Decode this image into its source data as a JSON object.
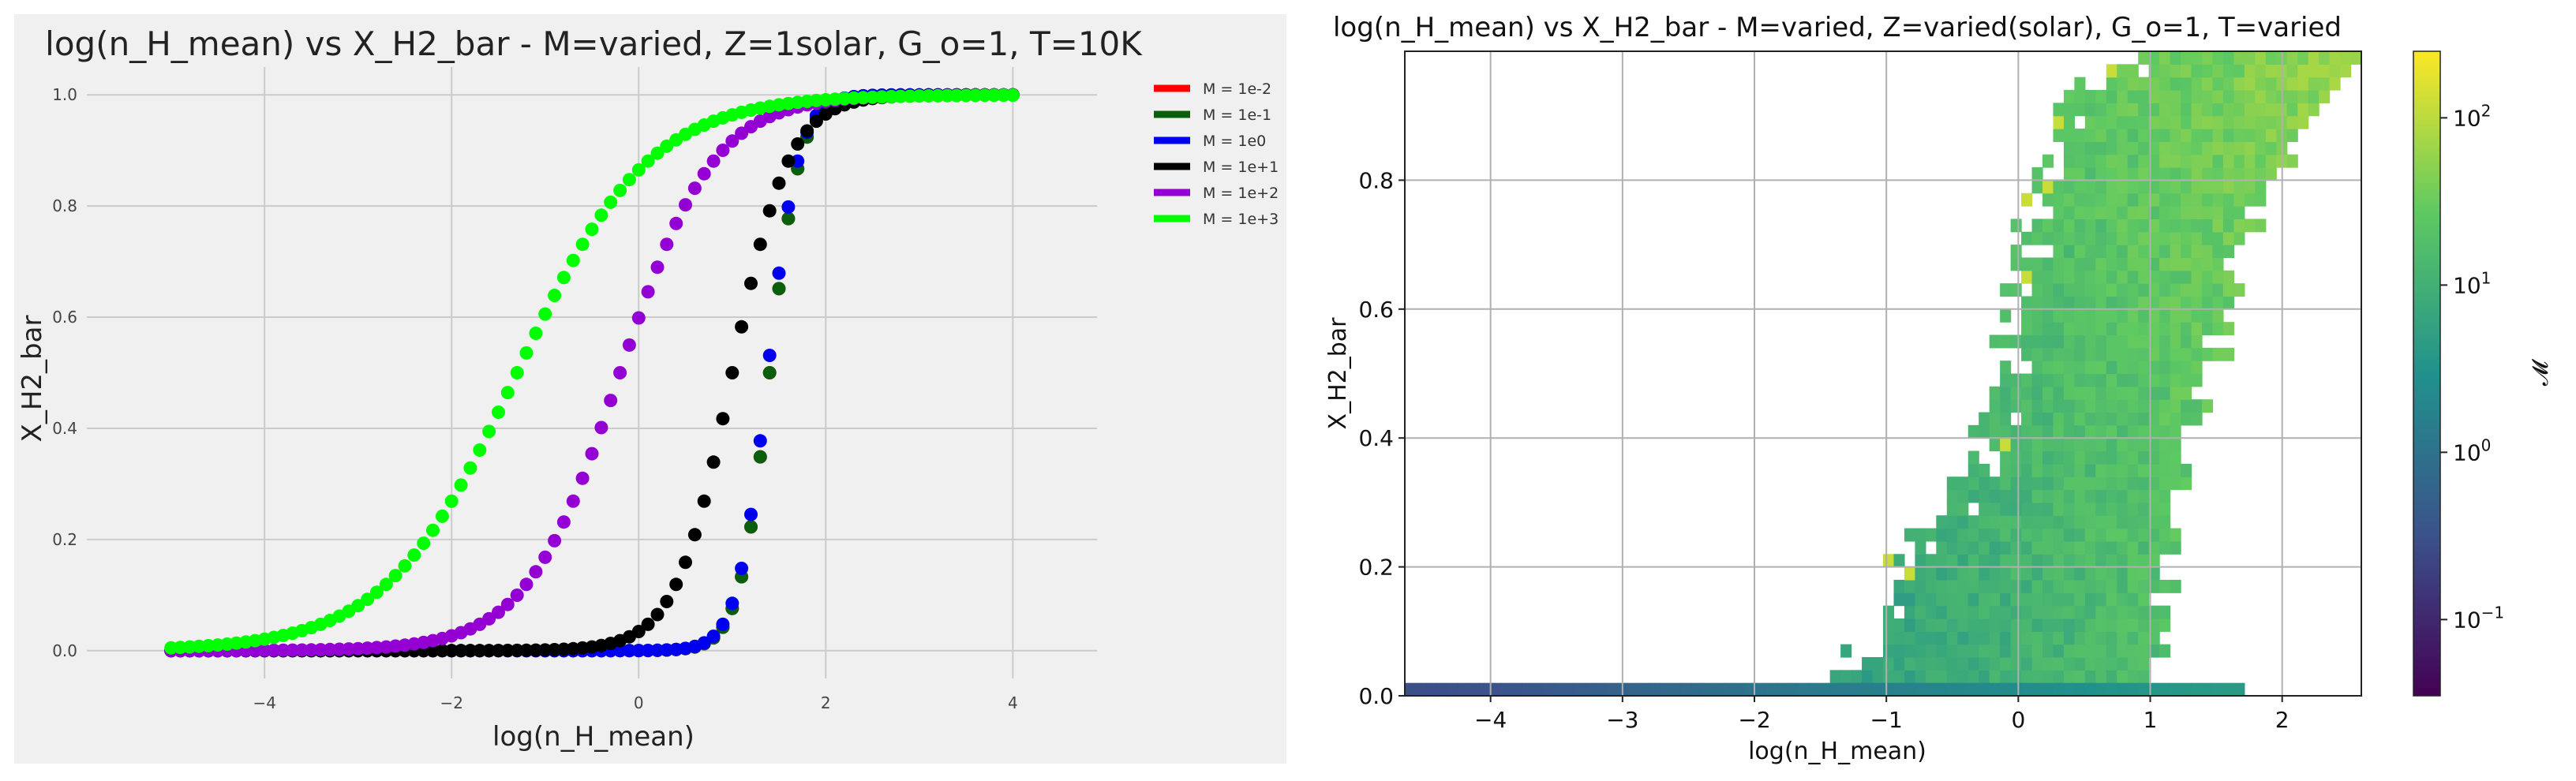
{
  "chart_data": [
    {
      "type": "scatter",
      "title": "log(n_H_mean) vs X_H2_bar - M=varied, Z=1solar, G_o=1, T=10K",
      "xlabel": "log(n_H_mean)",
      "ylabel": "X_H2_bar",
      "xlim": [
        -5.9,
        4.9
      ],
      "ylim": [
        -0.05,
        1.05
      ],
      "xticks": [
        "−4",
        "−2",
        "0",
        "2",
        "4"
      ],
      "xtick_values": [
        -4,
        -2,
        0,
        2,
        4
      ],
      "yticks": [
        "0.0",
        "0.2",
        "0.4",
        "0.6",
        "0.8",
        "1.0"
      ],
      "ytick_values": [
        0,
        0.2,
        0.4,
        0.6,
        0.8,
        1.0
      ],
      "grid": true,
      "legend_position": "right-top",
      "point_range": [
        -5,
        4
      ],
      "point_count": 91,
      "series": [
        {
          "name": "M = 1e-2",
          "color": "#ff0000",
          "center": 1.4,
          "width": 0.16
        },
        {
          "name": "M = 1e-1",
          "color": "#0b5e0b",
          "center": 1.4,
          "width": 0.16
        },
        {
          "name": "M = 1e0",
          "color": "#0000ee",
          "center": 1.38,
          "width": 0.16
        },
        {
          "name": "M = 1e+1",
          "color": "#000000",
          "center": 1.0,
          "width": 0.3
        },
        {
          "name": "M = 1e+2",
          "color": "#9400d3",
          "center": -0.2,
          "width": 0.5
        },
        {
          "name": "M = 1e+3",
          "color": "#00ff00",
          "center": -1.3,
          "width": 0.7
        }
      ]
    },
    {
      "type": "heatmap",
      "title": "log(n_H_mean) vs X_H2_bar - M=varied, Z=varied(solar), G_o=1, T=varied",
      "xlabel": "log(n_H_mean)",
      "ylabel": "X_H2_bar",
      "xlim": [
        -4.65,
        2.6
      ],
      "ylim": [
        0,
        1.0
      ],
      "xticks": [
        "−4",
        "−3",
        "−2",
        "−1",
        "0",
        "1",
        "2"
      ],
      "xtick_values": [
        -4,
        -3,
        -2,
        -1,
        0,
        1,
        2
      ],
      "yticks": [
        "0.0",
        "0.2",
        "0.4",
        "0.6",
        "0.8"
      ],
      "ytick_values": [
        0,
        0.2,
        0.4,
        0.6,
        0.8
      ],
      "grid": true,
      "colorbar": {
        "label": "𝓜",
        "scale": "log",
        "range": [
          0.035,
          250
        ],
        "tick_labels": [
          "10",
          "10",
          "10",
          "10"
        ],
        "tick_exponents": [
          "−1",
          "0",
          "1",
          "2"
        ],
        "tick_values": [
          0.1,
          1,
          10,
          100
        ]
      },
      "colormap": [
        "#440154",
        "#3b528b",
        "#21918c",
        "#5ec962",
        "#fde725"
      ],
      "bottom_band": {
        "y_range": [
          0,
          0.02
        ],
        "x_range": [
          -4.65,
          1.7
        ]
      },
      "region": {
        "left_edge": [
          [
            0,
            -1.6
          ],
          [
            0.1,
            -1.2
          ],
          [
            0.2,
            -0.95
          ],
          [
            0.3,
            -0.65
          ],
          [
            0.4,
            -0.35
          ],
          [
            0.5,
            -0.2
          ],
          [
            0.6,
            -0.05
          ],
          [
            0.7,
            -0.02
          ],
          [
            0.8,
            0.15
          ],
          [
            0.9,
            0.3
          ],
          [
            1.0,
            0.85
          ]
        ],
        "right_edge": [
          [
            0,
            0.95
          ],
          [
            0.1,
            1.05
          ],
          [
            0.2,
            1.15
          ],
          [
            0.3,
            1.25
          ],
          [
            0.4,
            1.35
          ],
          [
            0.5,
            1.45
          ],
          [
            0.6,
            1.6
          ],
          [
            0.7,
            1.65
          ],
          [
            0.8,
            1.95
          ],
          [
            0.9,
            2.3
          ],
          [
            1.0,
            2.6
          ]
        ]
      }
    }
  ]
}
